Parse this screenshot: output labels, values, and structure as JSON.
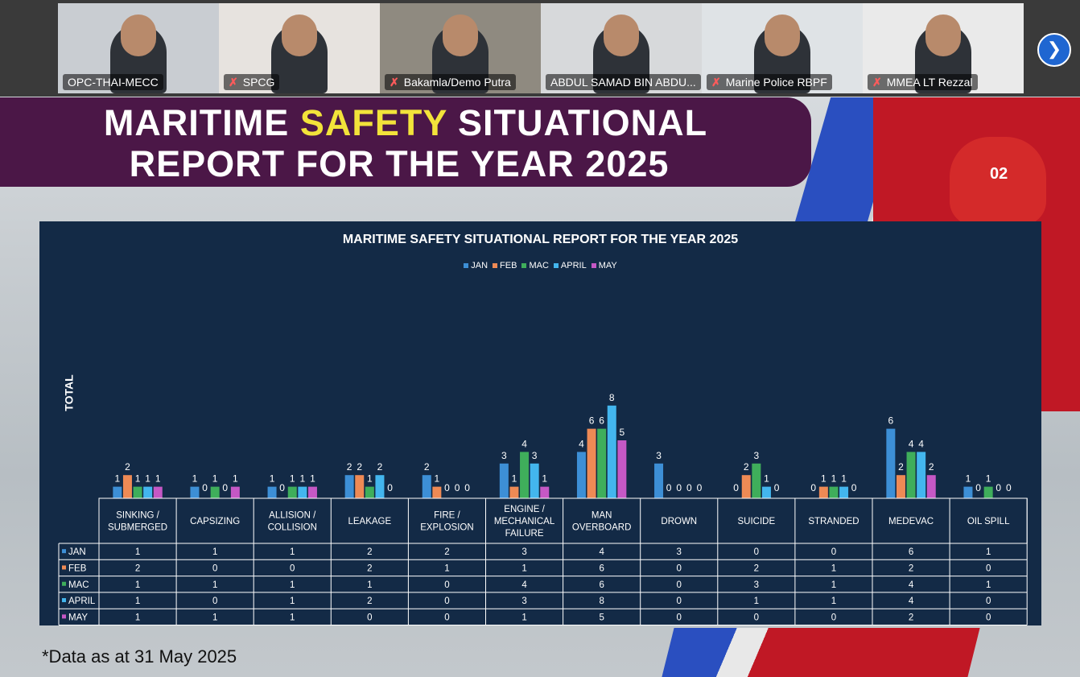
{
  "participants": [
    {
      "name": "OPC-THAI-MECC",
      "muted": false,
      "active": false
    },
    {
      "name": "SPCG",
      "muted": true,
      "active": false
    },
    {
      "name": "Bakamla/Demo Putra",
      "muted": true,
      "active": false
    },
    {
      "name": "ABDUL SAMAD BIN ABDU...",
      "muted": false,
      "active": true
    },
    {
      "name": "Marine Police RBPF",
      "muted": true,
      "active": false
    },
    {
      "name": "MMEA LT Rezzal",
      "muted": true,
      "active": false
    }
  ],
  "next_icon": "chevron-right-icon",
  "banner": {
    "line1_a": "MARITIME ",
    "line1_b": "SAFETY",
    "line1_c": " SITUATIONAL",
    "line2": "REPORT FOR THE YEAR 2025"
  },
  "heli_number": "02",
  "footnote": "*Data as at 31 May 2025",
  "colors": {
    "JAN": "#3d8fd6",
    "FEB": "#ee8a55",
    "MAC": "#3fae5b",
    "APRIL": "#43b6ee",
    "MAY": "#c558c5"
  },
  "chart_data": {
    "type": "bar",
    "title": "MARITIME SAFETY SITUATIONAL REPORT FOR THE YEAR 2025",
    "ylabel": "TOTAL",
    "xlabel": "",
    "legend_position": "top-center",
    "categories": [
      "SINKING / SUBMERGED",
      "CAPSIZING",
      "ALLISION / COLLISION",
      "LEAKAGE",
      "FIRE / EXPLOSION",
      "ENGINE / MECHANICAL FAILURE",
      "MAN OVERBOARD",
      "DROWN",
      "SUICIDE",
      "STRANDED",
      "MEDEVAC",
      "OIL SPILL"
    ],
    "series": [
      {
        "name": "JAN",
        "values": [
          1,
          1,
          1,
          2,
          2,
          3,
          4,
          3,
          0,
          0,
          6,
          1
        ]
      },
      {
        "name": "FEB",
        "values": [
          2,
          0,
          0,
          2,
          1,
          1,
          6,
          0,
          2,
          1,
          2,
          0
        ]
      },
      {
        "name": "MAC",
        "values": [
          1,
          1,
          1,
          1,
          0,
          4,
          6,
          0,
          3,
          1,
          4,
          1
        ]
      },
      {
        "name": "APRIL",
        "values": [
          1,
          0,
          1,
          2,
          0,
          3,
          8,
          0,
          1,
          1,
          4,
          0
        ]
      },
      {
        "name": "MAY",
        "values": [
          1,
          1,
          1,
          0,
          0,
          1,
          5,
          0,
          0,
          0,
          2,
          0
        ]
      }
    ],
    "ylim": [
      0,
      8
    ],
    "grid": false,
    "data_table": true
  }
}
